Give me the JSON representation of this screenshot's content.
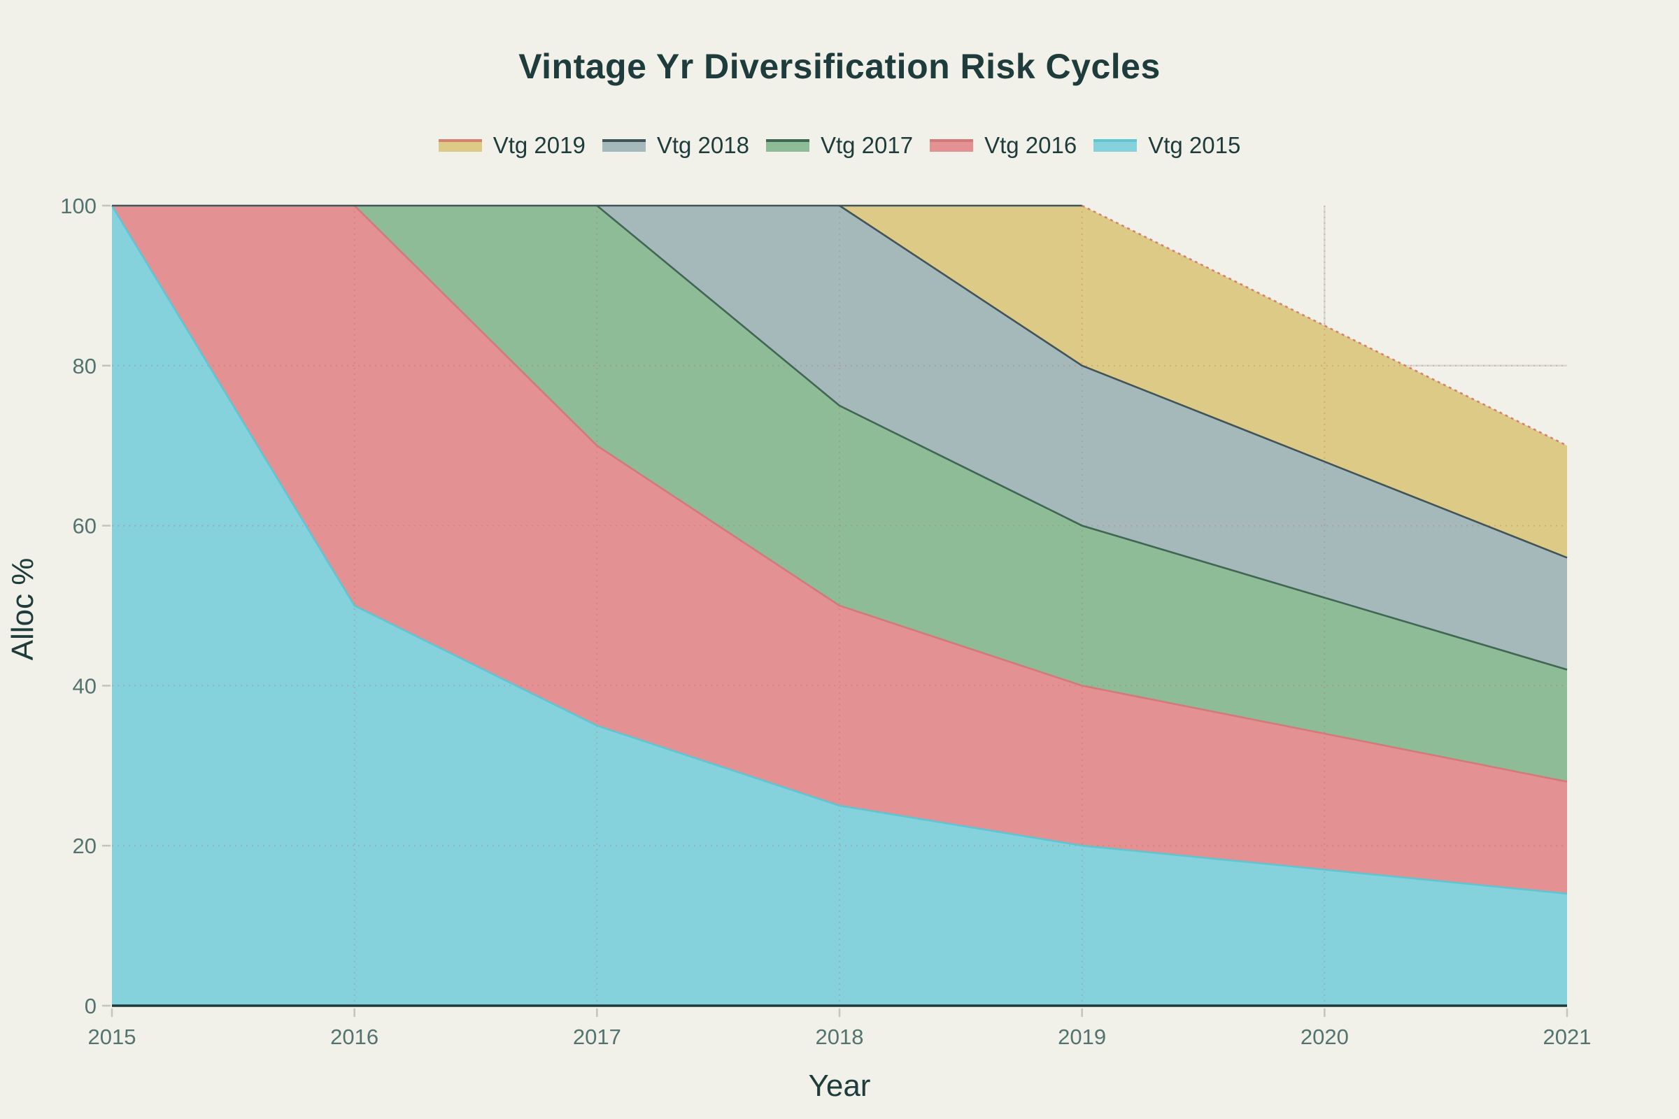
{
  "title": "Vintage Yr Diversification Risk Cycles",
  "axis": {
    "xlabel": "Year",
    "ylabel": "Alloc %"
  },
  "colors": {
    "background": "#f1f1ea",
    "title_text": "#1e3c3b",
    "tick_text": "#53736f",
    "axis_line": "#1d393b",
    "tick_mark": "#c4c4bb",
    "grid_under": "#d9d9d1",
    "grid_over": "rgba(196,110,100,0.38)",
    "top_edge": "#40545a"
  },
  "chart_data": {
    "type": "area",
    "stacked": true,
    "title": "Vintage Yr Diversification Risk Cycles",
    "xlabel": "Year",
    "ylabel": "Alloc %",
    "x": [
      2015,
      2016,
      2017,
      2018,
      2019,
      2020,
      2021
    ],
    "yticks": [
      0,
      20,
      40,
      60,
      80,
      100
    ],
    "ylim": [
      0,
      100
    ],
    "grid": true,
    "legend_position": "top",
    "legend_order": [
      "Vtg 2019",
      "Vtg 2018",
      "Vtg 2017",
      "Vtg 2016",
      "Vtg 2015"
    ],
    "series": [
      {
        "name": "Vtg 2015",
        "values": [
          100,
          50,
          35,
          25,
          20,
          17,
          14
        ],
        "fill": "#85d2dc",
        "stroke": "#5fc5d3",
        "dash": ""
      },
      {
        "name": "Vtg 2016",
        "values": [
          0,
          50,
          35,
          25,
          20,
          17,
          14
        ],
        "fill": "#e39193",
        "stroke": "#d4797a",
        "dash": ""
      },
      {
        "name": "Vtg 2017",
        "values": [
          0,
          0,
          30,
          25,
          20,
          17,
          14
        ],
        "fill": "#8ebc96",
        "stroke": "#3f6754",
        "dash": ""
      },
      {
        "name": "Vtg 2018",
        "values": [
          0,
          0,
          0,
          25,
          20,
          17,
          14
        ],
        "fill": "#a5b8ba",
        "stroke": "#40545a",
        "dash": ""
      },
      {
        "name": "Vtg 2019",
        "values": [
          0,
          0,
          0,
          0,
          20,
          17,
          14
        ],
        "fill": "#ddca86",
        "stroke": "#d8806e",
        "dash": "4 5"
      }
    ]
  }
}
